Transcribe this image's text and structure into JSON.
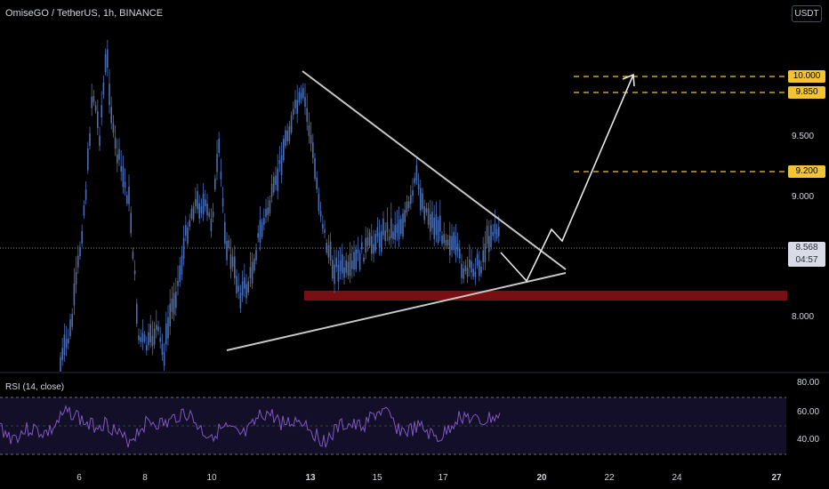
{
  "header": {
    "symbol": "OmiseGO / TetherUS, 1h, BINANCE",
    "currency_button": "USDT"
  },
  "price_axis": {
    "ticks": [
      {
        "value": 9.5,
        "label": "9.500"
      },
      {
        "value": 9.0,
        "label": "9.000"
      },
      {
        "value": 8.0,
        "label": "8.000"
      }
    ],
    "target_labels": [
      {
        "value": 10.0,
        "label": "10.000"
      },
      {
        "value": 9.85,
        "label": "9.850"
      },
      {
        "value": 9.2,
        "label": "9.200"
      }
    ],
    "current_price": {
      "value": 8.568,
      "label": "8.568",
      "countdown": "04:57"
    }
  },
  "rsi": {
    "label": "RSI (14, close)",
    "ticks": [
      "80.00",
      "60.00",
      "40.00"
    ],
    "upper_band": 70,
    "lower_band": 30
  },
  "time_axis": {
    "ticks": [
      {
        "label": "6",
        "bold": false
      },
      {
        "label": "8",
        "bold": false
      },
      {
        "label": "10",
        "bold": false
      },
      {
        "label": "13",
        "bold": true
      },
      {
        "label": "15",
        "bold": false
      },
      {
        "label": "17",
        "bold": false
      },
      {
        "label": "20",
        "bold": true
      },
      {
        "label": "22",
        "bold": false
      },
      {
        "label": "24",
        "bold": false
      },
      {
        "label": "27",
        "bold": true
      }
    ]
  },
  "colors": {
    "candles": "#4a6fb5",
    "trendline": "#c8c8c8",
    "target": "#f2c433",
    "support_zone": "#7a0f13",
    "rsi_line": "#7e57c2",
    "rsi_band": "#1a1433"
  },
  "drawings": {
    "pattern": "symmetrical triangle",
    "support_zone": [
      8.4,
      8.48
    ],
    "projection_targets": [
      9.2,
      9.85,
      10.0
    ]
  }
}
